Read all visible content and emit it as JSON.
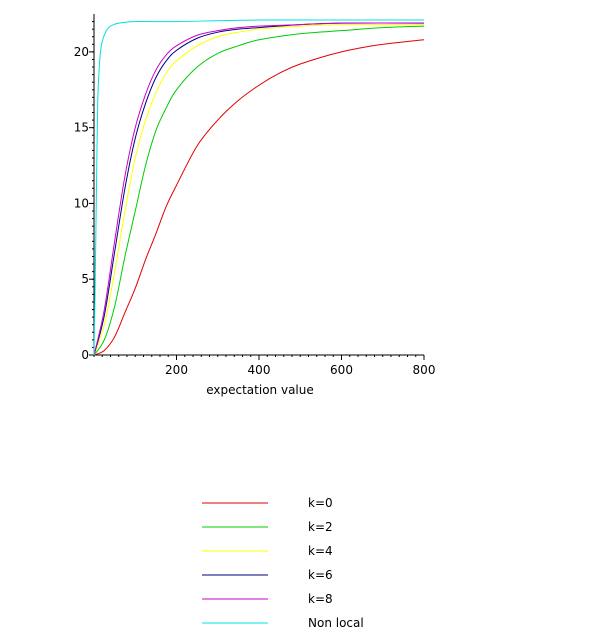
{
  "chart_data": {
    "type": "line",
    "title": "",
    "xlabel": "expectation value",
    "ylabel": "",
    "xlim": [
      0,
      800
    ],
    "ylim": [
      0,
      22.5
    ],
    "x_ticks": [
      200,
      400,
      600,
      800
    ],
    "x_tick_labels": [
      "200",
      "400",
      "600",
      "800"
    ],
    "y_ticks": [
      0,
      5,
      10,
      15,
      20
    ],
    "y_tick_labels": [
      "0",
      "5",
      "10",
      "15",
      "20"
    ],
    "grid": false,
    "legend_position": "bottom",
    "series": [
      {
        "name": "k=0",
        "color": "#e00000",
        "points": [
          [
            0,
            0
          ],
          [
            25,
            0.3
          ],
          [
            50,
            1.2
          ],
          [
            75,
            2.8
          ],
          [
            100,
            4.4
          ],
          [
            125,
            6.3
          ],
          [
            150,
            8.0
          ],
          [
            175,
            9.8
          ],
          [
            200,
            11.2
          ],
          [
            250,
            13.8
          ],
          [
            300,
            15.5
          ],
          [
            350,
            16.8
          ],
          [
            400,
            17.8
          ],
          [
            450,
            18.6
          ],
          [
            500,
            19.2
          ],
          [
            600,
            20.0
          ],
          [
            700,
            20.5
          ],
          [
            800,
            20.8
          ]
        ]
      },
      {
        "name": "k=2",
        "color": "#00cc00",
        "points": [
          [
            0,
            0
          ],
          [
            25,
            1.0
          ],
          [
            50,
            3.2
          ],
          [
            75,
            6.5
          ],
          [
            100,
            9.5
          ],
          [
            125,
            12.5
          ],
          [
            150,
            14.8
          ],
          [
            175,
            16.3
          ],
          [
            200,
            17.5
          ],
          [
            250,
            19.0
          ],
          [
            300,
            19.9
          ],
          [
            350,
            20.4
          ],
          [
            400,
            20.8
          ],
          [
            500,
            21.2
          ],
          [
            600,
            21.4
          ],
          [
            700,
            21.6
          ],
          [
            800,
            21.7
          ]
        ]
      },
      {
        "name": "k=4",
        "color": "#ffff00",
        "points": [
          [
            0,
            0
          ],
          [
            25,
            2.0
          ],
          [
            50,
            5.5
          ],
          [
            75,
            9.5
          ],
          [
            100,
            13.0
          ],
          [
            125,
            15.5
          ],
          [
            150,
            17.3
          ],
          [
            175,
            18.6
          ],
          [
            200,
            19.4
          ],
          [
            250,
            20.4
          ],
          [
            300,
            21.0
          ],
          [
            350,
            21.3
          ],
          [
            400,
            21.5
          ],
          [
            500,
            21.7
          ],
          [
            600,
            21.8
          ],
          [
            800,
            21.8
          ]
        ]
      },
      {
        "name": "k=6",
        "color": "#000080",
        "points": [
          [
            0,
            0
          ],
          [
            25,
            2.6
          ],
          [
            50,
            6.8
          ],
          [
            75,
            11.0
          ],
          [
            100,
            14.3
          ],
          [
            125,
            16.6
          ],
          [
            150,
            18.3
          ],
          [
            175,
            19.4
          ],
          [
            200,
            20.1
          ],
          [
            250,
            20.9
          ],
          [
            300,
            21.3
          ],
          [
            350,
            21.5
          ],
          [
            400,
            21.6
          ],
          [
            500,
            21.8
          ],
          [
            600,
            21.9
          ],
          [
            800,
            21.9
          ]
        ]
      },
      {
        "name": "k=8",
        "color": "#cc00cc",
        "points": [
          [
            0,
            0
          ],
          [
            25,
            3.0
          ],
          [
            50,
            7.5
          ],
          [
            75,
            11.8
          ],
          [
            100,
            15.0
          ],
          [
            125,
            17.2
          ],
          [
            150,
            18.8
          ],
          [
            175,
            19.8
          ],
          [
            200,
            20.4
          ],
          [
            250,
            21.1
          ],
          [
            300,
            21.4
          ],
          [
            350,
            21.6
          ],
          [
            400,
            21.7
          ],
          [
            500,
            21.8
          ],
          [
            600,
            21.9
          ],
          [
            800,
            21.9
          ]
        ]
      },
      {
        "name": "Non local",
        "color": "#00e0e0",
        "points": [
          [
            0,
            0
          ],
          [
            3,
            5
          ],
          [
            6,
            11
          ],
          [
            8,
            15
          ],
          [
            10,
            17.5
          ],
          [
            15,
            19.8
          ],
          [
            20,
            20.7
          ],
          [
            30,
            21.4
          ],
          [
            40,
            21.7
          ],
          [
            60,
            21.9
          ],
          [
            100,
            22.0
          ],
          [
            200,
            22.0
          ],
          [
            400,
            22.1
          ],
          [
            800,
            22.1
          ]
        ]
      }
    ]
  }
}
